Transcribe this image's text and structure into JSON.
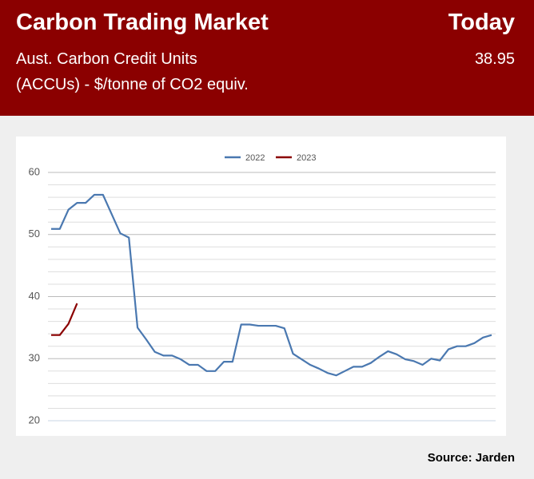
{
  "header": {
    "title": "Carbon Trading Market",
    "today_label": "Today",
    "subtitle_line1": "Aust. Carbon Credit Units",
    "subtitle_line2": "(ACCUs) - $/tonne of CO2 equiv.",
    "today_value": "38.95"
  },
  "source": "Source: Jarden",
  "chart_data": {
    "type": "line",
    "x": [
      0,
      1,
      2,
      3,
      4,
      5,
      6,
      7,
      8,
      9,
      10,
      11,
      12,
      13,
      14,
      15,
      16,
      17,
      18,
      19,
      20,
      21,
      22,
      23,
      24,
      25,
      26,
      27,
      28,
      29,
      30,
      31,
      32,
      33,
      34,
      35,
      36,
      37,
      38,
      39,
      40,
      41,
      42,
      43,
      44,
      45,
      46,
      47,
      48,
      49,
      50,
      51
    ],
    "xlim": [
      0,
      51
    ],
    "series": [
      {
        "name": "2022",
        "color": "#4a78b0",
        "values": [
          50.9,
          50.9,
          54.0,
          55.1,
          55.1,
          56.4,
          56.4,
          53.3,
          50.2,
          49.5,
          35.0,
          33.1,
          31.1,
          30.5,
          30.5,
          29.9,
          29.0,
          29.0,
          28.0,
          28.0,
          29.5,
          29.5,
          35.5,
          35.5,
          35.3,
          35.3,
          35.3,
          34.9,
          30.8,
          29.9,
          29.0,
          28.4,
          27.7,
          27.3,
          28.0,
          28.7,
          28.7,
          29.3,
          30.3,
          31.2,
          30.7,
          29.9,
          29.6,
          29.0,
          30.0,
          29.7,
          31.5,
          32.0,
          32.0,
          32.5,
          33.4,
          33.8
        ]
      },
      {
        "name": "2023",
        "color": "#8b0000",
        "values": [
          33.8,
          33.8,
          35.6,
          38.9,
          null,
          null,
          null,
          null,
          null,
          null,
          null,
          null,
          null,
          null,
          null,
          null,
          null,
          null,
          null,
          null,
          null,
          null,
          null,
          null,
          null,
          null,
          null,
          null,
          null,
          null,
          null,
          null,
          null,
          null,
          null,
          null,
          null,
          null,
          null,
          null,
          null,
          null,
          null,
          null,
          null,
          null,
          null,
          null,
          null,
          null,
          null,
          null
        ]
      }
    ],
    "ylim": [
      20,
      60
    ],
    "yticks": [
      20,
      30,
      40,
      50,
      60
    ],
    "yminorticks": [
      22,
      24,
      26,
      28,
      32,
      34,
      36,
      38,
      42,
      44,
      46,
      48,
      52,
      54,
      56,
      58
    ],
    "grid": true,
    "legend": "top"
  }
}
